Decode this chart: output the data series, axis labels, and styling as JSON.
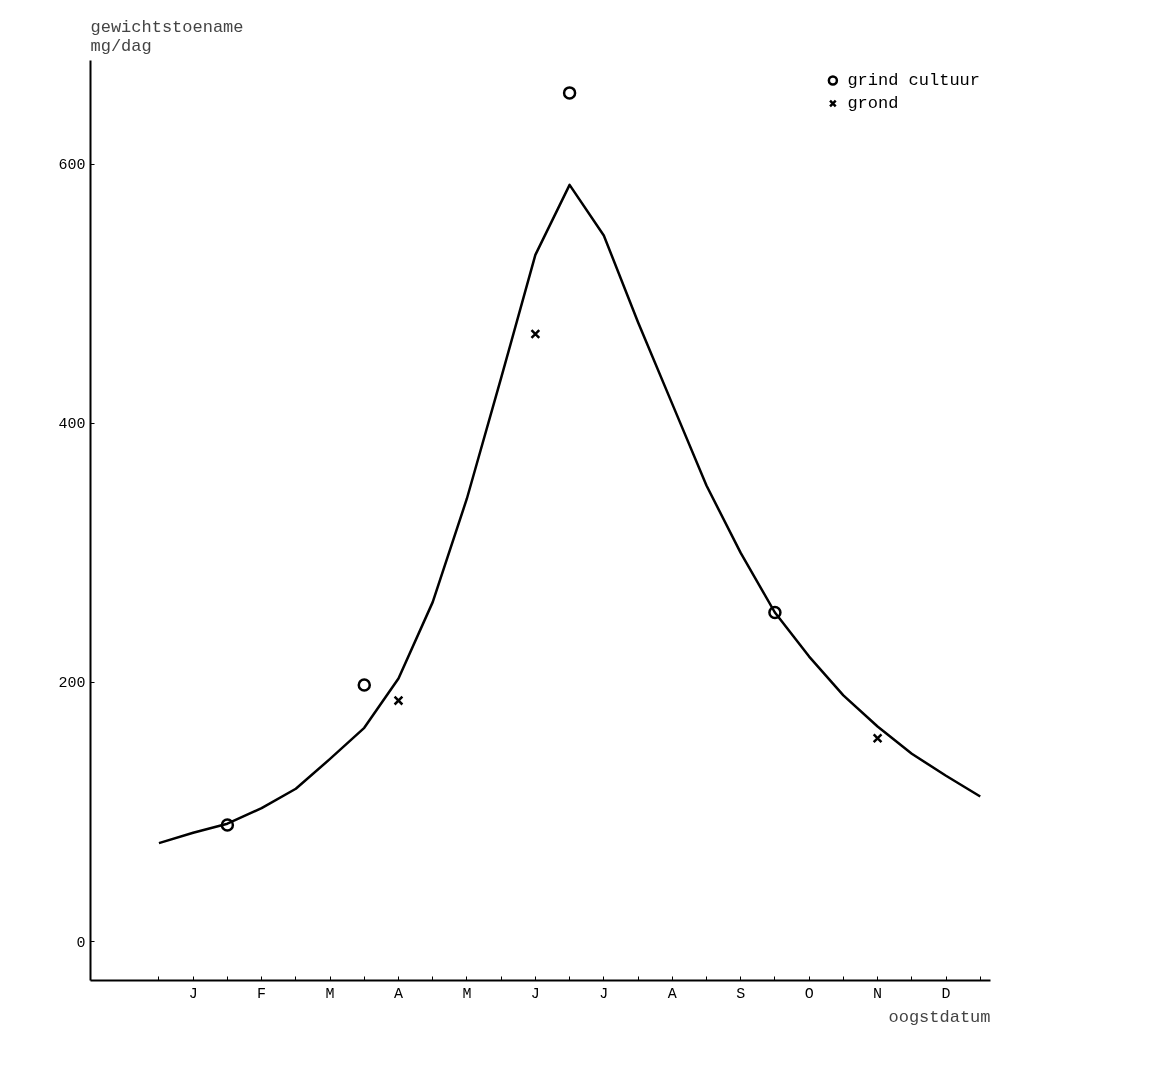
{
  "chart_data": {
    "type": "scatter",
    "xlabel": "oogstdatum",
    "ylabel": "gewichtstoename\nmg/dag",
    "categories": [
      null,
      "J",
      null,
      "F",
      null,
      "M",
      null,
      "A",
      null,
      "M",
      null,
      "J",
      null,
      "J",
      null,
      "A",
      null,
      "S",
      null,
      "O",
      null,
      "N",
      null,
      "D",
      null
    ],
    "ylim": [
      -30,
      680
    ],
    "yticks": [
      0,
      200,
      400,
      600
    ],
    "grid": false,
    "legend": "top right",
    "series": [
      {
        "type": "line",
        "color": "#000000",
        "marker": "none",
        "line_style": "solid",
        "values": [
          76,
          84,
          91,
          103,
          118,
          141,
          165,
          203,
          262,
          342,
          435,
          530,
          584,
          545,
          478,
          415,
          352,
          300,
          254,
          220,
          190,
          166,
          145,
          128,
          112
        ]
      },
      {
        "name": "grind cultuur",
        "color": "#000000",
        "marker": "circle",
        "values": [
          null,
          null,
          90,
          null,
          null,
          null,
          198,
          null,
          null,
          null,
          null,
          null,
          655,
          null,
          null,
          null,
          null,
          null,
          254,
          null,
          null,
          null,
          null,
          null,
          null
        ]
      },
      {
        "name": "grond",
        "color": "#000000",
        "marker": "cross",
        "values": [
          null,
          null,
          null,
          null,
          null,
          null,
          null,
          186,
          null,
          null,
          null,
          469,
          null,
          null,
          null,
          null,
          null,
          null,
          null,
          null,
          null,
          157,
          null,
          null,
          null
        ]
      }
    ]
  }
}
